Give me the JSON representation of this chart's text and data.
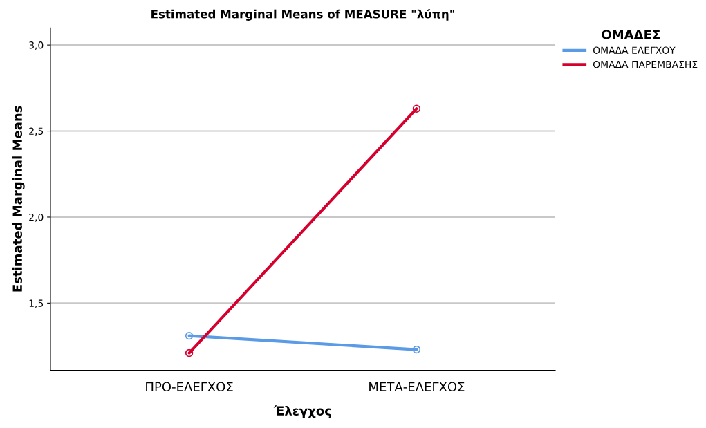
{
  "chart_data": {
    "type": "line",
    "title": "Estimated Marginal Means of MEASURE \"λύπη\"",
    "xlabel": "Έλεγχος",
    "ylabel": "Estimated Marginal Means",
    "legend_title": "ΟΜΑΔΕΣ",
    "categories": [
      "ΠΡΟ-ΕΛΕΓΧΟΣ",
      "ΜΕΤΑ-ΕΛΕΓΧΟΣ"
    ],
    "series": [
      {
        "name": "ΟΜΑΔΑ ΕΛΕΓΧΟΥ",
        "color": "#5b9be6",
        "values": [
          1.31,
          1.23
        ]
      },
      {
        "name": "ΟΜΑΔΑ ΠΑΡΕΜΒΑΣΗΣ",
        "color": "#d5002e",
        "values": [
          1.21,
          2.63
        ]
      }
    ],
    "ylim": [
      1.11,
      3.1
    ],
    "yticks": [
      {
        "value": 1.5,
        "label": "1,5"
      },
      {
        "value": 2.0,
        "label": "2,0"
      },
      {
        "value": 2.5,
        "label": "2,5"
      },
      {
        "value": 3.0,
        "label": "3,0"
      }
    ],
    "grid": "y",
    "legend": "top right",
    "marker": "circle",
    "line_style": "solid"
  }
}
